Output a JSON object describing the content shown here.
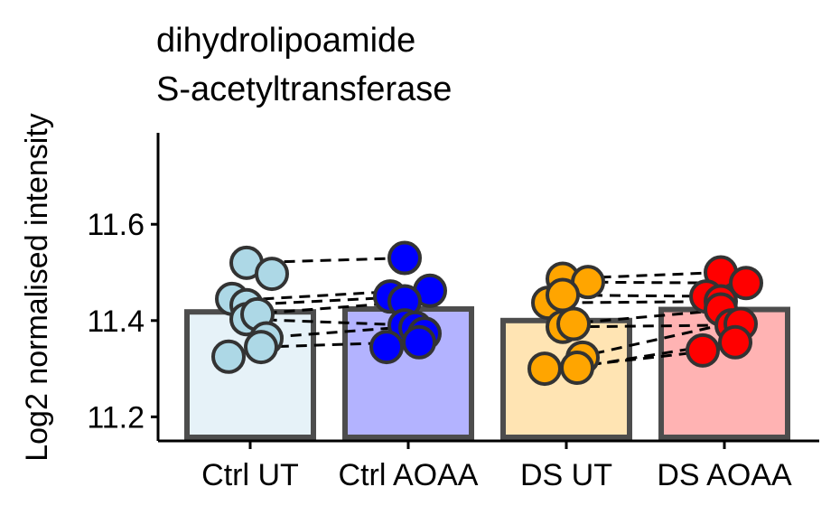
{
  "chart_data": {
    "type": "bar",
    "title": "dihydrolipoamide\nS-acetyltransferase",
    "xlabel": "",
    "ylabel": "Log2 normalised intensity",
    "ylim": [
      11.15,
      11.79
    ],
    "yticks": [
      11.2,
      11.4,
      11.6
    ],
    "ytick_labels": [
      "11.2",
      "11.4",
      "11.6"
    ],
    "grid": false,
    "legend": "none",
    "categories": [
      "Ctrl UT",
      "Ctrl AOAA",
      "DS UT",
      "DS AOAA"
    ],
    "values": [
      11.418,
      11.424,
      11.4,
      11.423
    ],
    "bar_fill_colors": [
      "#e6f2f8",
      "#b3b3ff",
      "#ffe4b3",
      "#ffb3b3"
    ],
    "point_colors": [
      "#add8e6",
      "#0000ff",
      "#ffa500",
      "#ff0000"
    ],
    "points": [
      [
        11.52,
        11.497,
        11.445,
        11.432,
        11.403,
        11.413,
        11.363,
        11.345,
        11.325
      ],
      [
        11.53,
        11.462,
        11.45,
        11.44,
        11.39,
        11.385,
        11.373,
        11.355,
        11.345
      ],
      [
        11.487,
        11.48,
        11.437,
        11.453,
        11.387,
        11.393,
        11.323,
        11.302,
        11.3
      ],
      [
        11.5,
        11.478,
        11.45,
        11.44,
        11.423,
        11.39,
        11.393,
        11.355,
        11.338
      ]
    ],
    "paired_lines": [
      {
        "from": 0,
        "to": 1,
        "pairs": [
          [
            11.52,
            11.53
          ],
          [
            11.445,
            11.462
          ],
          [
            11.432,
            11.45
          ],
          [
            11.413,
            11.44
          ],
          [
            11.403,
            11.39
          ],
          [
            11.363,
            11.385
          ],
          [
            11.345,
            11.355
          ]
        ]
      },
      {
        "from": 2,
        "to": 3,
        "pairs": [
          [
            11.487,
            11.5
          ],
          [
            11.48,
            11.478
          ],
          [
            11.453,
            11.45
          ],
          [
            11.437,
            11.44
          ],
          [
            11.393,
            11.423
          ],
          [
            11.387,
            11.39
          ],
          [
            11.323,
            11.393
          ],
          [
            11.302,
            11.355
          ],
          [
            11.3,
            11.338
          ]
        ]
      }
    ]
  }
}
